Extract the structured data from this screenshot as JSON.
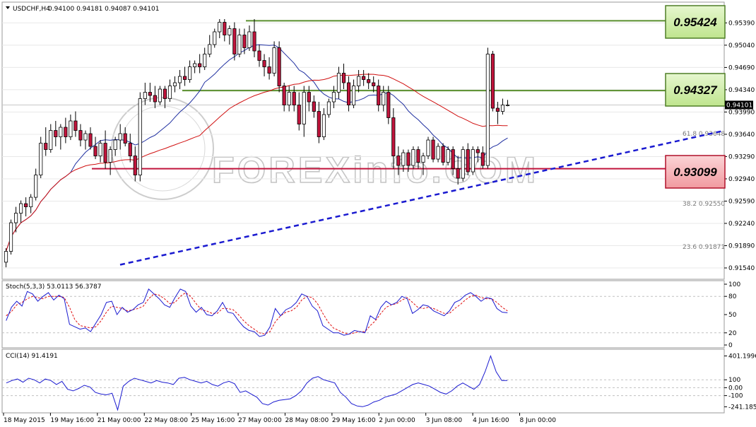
{
  "header": {
    "symbol": "USDCHF,H4",
    "ohlc": "0.94100 0.94181 0.94087 0.94101"
  },
  "watermark": "FOREXinfo.COM",
  "colors": {
    "bull": "#ffffff",
    "bear": "#c0143c",
    "ma_fast": "#1f2fa0",
    "ma_slow": "#d01010",
    "resistance": "#5a8f2e",
    "support": "#c0143c",
    "trend": "#1a1ad0",
    "stoch_main": "#1a1ad0",
    "stoch_signal": "#e01010",
    "cci": "#1a1ad0"
  },
  "chart_data": [
    {
      "type": "candlestick",
      "panel": "price",
      "title": "USDCHF,H4",
      "ylim": [
        0.9144,
        0.9555
      ],
      "y_ticks": [
        "0.95390",
        "0.95040",
        "0.94690",
        "0.94340",
        "0.93990",
        "0.93640",
        "0.93290",
        "0.92940",
        "0.92590",
        "0.92240",
        "0.91890",
        "0.91540"
      ],
      "x_labels": [
        "18 May 2015",
        "19 May 16:00",
        "21 May 00:00",
        "22 May 08:00",
        "25 May 16:00",
        "27 May 00:00",
        "28 May 08:00",
        "29 May 16:00",
        "2 Jun 00:00",
        "3 Jun 08:00",
        "4 Jun 16:00",
        "8 Jun 00:00"
      ],
      "current_price_label": "0.94101",
      "levels": [
        {
          "name": "resistance-high",
          "value": 0.95424,
          "label": "0.95424",
          "color": "#5a8f2e"
        },
        {
          "name": "resistance-mid",
          "value": 0.94327,
          "label": "0.94327",
          "color": "#5a8f2e"
        },
        {
          "name": "support",
          "value": 0.93099,
          "label": "0.93099",
          "color": "#c0143c"
        }
      ],
      "fib_levels": [
        {
          "label": "61.8",
          "value": 0.93648
        },
        {
          "label": "38.2",
          "value": 0.9255
        },
        {
          "label": "23.6",
          "value": 0.91871
        }
      ],
      "trendline": {
        "from": 0.9159,
        "to": 0.9369
      },
      "candles": [
        [
          0.9163,
          0.9185,
          0.9155,
          0.918
        ],
        [
          0.918,
          0.923,
          0.9175,
          0.9225
        ],
        [
          0.9225,
          0.925,
          0.921,
          0.924
        ],
        [
          0.924,
          0.926,
          0.9225,
          0.9255
        ],
        [
          0.9255,
          0.9265,
          0.9235,
          0.925
        ],
        [
          0.925,
          0.927,
          0.924,
          0.9265
        ],
        [
          0.9265,
          0.931,
          0.926,
          0.93
        ],
        [
          0.93,
          0.936,
          0.9295,
          0.935
        ],
        [
          0.935,
          0.9375,
          0.933,
          0.934
        ],
        [
          0.934,
          0.938,
          0.9335,
          0.937
        ],
        [
          0.937,
          0.9385,
          0.9345,
          0.936
        ],
        [
          0.936,
          0.938,
          0.934,
          0.9375
        ],
        [
          0.9375,
          0.939,
          0.935,
          0.936
        ],
        [
          0.936,
          0.9395,
          0.9355,
          0.9385
        ],
        [
          0.9385,
          0.94,
          0.936,
          0.937
        ],
        [
          0.937,
          0.938,
          0.9345,
          0.9355
        ],
        [
          0.9355,
          0.937,
          0.934,
          0.9365
        ],
        [
          0.9365,
          0.9375,
          0.934,
          0.9345
        ],
        [
          0.9345,
          0.936,
          0.9325,
          0.933
        ],
        [
          0.933,
          0.9355,
          0.932,
          0.935
        ],
        [
          0.935,
          0.937,
          0.931,
          0.932
        ],
        [
          0.932,
          0.9345,
          0.93,
          0.934
        ],
        [
          0.934,
          0.936,
          0.933,
          0.9355
        ],
        [
          0.9355,
          0.938,
          0.934,
          0.9365
        ],
        [
          0.9365,
          0.9375,
          0.9345,
          0.935
        ],
        [
          0.935,
          0.9365,
          0.932,
          0.933
        ],
        [
          0.933,
          0.9345,
          0.929,
          0.93
        ],
        [
          0.93,
          0.943,
          0.929,
          0.942
        ],
        [
          0.942,
          0.9445,
          0.941,
          0.943
        ],
        [
          0.943,
          0.9445,
          0.9415,
          0.9425
        ],
        [
          0.9425,
          0.944,
          0.9405,
          0.9415
        ],
        [
          0.9415,
          0.944,
          0.941,
          0.9435
        ],
        [
          0.9435,
          0.944,
          0.9405,
          0.942
        ],
        [
          0.942,
          0.945,
          0.9415,
          0.944
        ],
        [
          0.944,
          0.9455,
          0.943,
          0.9445
        ],
        [
          0.9445,
          0.9465,
          0.9435,
          0.9455
        ],
        [
          0.9455,
          0.947,
          0.944,
          0.945
        ],
        [
          0.945,
          0.948,
          0.9445,
          0.947
        ],
        [
          0.947,
          0.948,
          0.946,
          0.9475
        ],
        [
          0.9475,
          0.949,
          0.946,
          0.947
        ],
        [
          0.947,
          0.95,
          0.9465,
          0.949
        ],
        [
          0.949,
          0.952,
          0.9485,
          0.9505
        ],
        [
          0.9505,
          0.953,
          0.95,
          0.9525
        ],
        [
          0.9525,
          0.9545,
          0.9515,
          0.954
        ],
        [
          0.954,
          0.9545,
          0.951,
          0.952
        ],
        [
          0.952,
          0.9535,
          0.9505,
          0.953
        ],
        [
          0.953,
          0.954,
          0.948,
          0.949
        ],
        [
          0.949,
          0.953,
          0.9485,
          0.952
        ],
        [
          0.952,
          0.953,
          0.949,
          0.95
        ],
        [
          0.95,
          0.9535,
          0.9495,
          0.9525
        ],
        [
          0.9525,
          0.9545,
          0.9485,
          0.9495
        ],
        [
          0.9495,
          0.9505,
          0.947,
          0.948
        ],
        [
          0.948,
          0.949,
          0.9455,
          0.947
        ],
        [
          0.947,
          0.9485,
          0.945,
          0.946
        ],
        [
          0.946,
          0.951,
          0.9455,
          0.95
        ],
        [
          0.95,
          0.951,
          0.943,
          0.944
        ],
        [
          0.944,
          0.9445,
          0.94,
          0.941
        ],
        [
          0.941,
          0.944,
          0.94,
          0.943
        ],
        [
          0.943,
          0.944,
          0.94,
          0.941
        ],
        [
          0.941,
          0.943,
          0.937,
          0.938
        ],
        [
          0.938,
          0.944,
          0.936,
          0.943
        ],
        [
          0.943,
          0.944,
          0.94,
          0.9415
        ],
        [
          0.9415,
          0.9425,
          0.939,
          0.94
        ],
        [
          0.94,
          0.9415,
          0.935,
          0.936
        ],
        [
          0.936,
          0.9405,
          0.9355,
          0.9395
        ],
        [
          0.9395,
          0.942,
          0.939,
          0.9415
        ],
        [
          0.9415,
          0.944,
          0.9405,
          0.943
        ],
        [
          0.943,
          0.947,
          0.942,
          0.946
        ],
        [
          0.946,
          0.9475,
          0.9435,
          0.9445
        ],
        [
          0.9445,
          0.9455,
          0.94,
          0.941
        ],
        [
          0.941,
          0.945,
          0.9405,
          0.944
        ],
        [
          0.944,
          0.9465,
          0.943,
          0.9455
        ],
        [
          0.9455,
          0.9465,
          0.944,
          0.945
        ],
        [
          0.945,
          0.946,
          0.9435,
          0.9445
        ],
        [
          0.9445,
          0.9455,
          0.943,
          0.944
        ],
        [
          0.944,
          0.945,
          0.94,
          0.941
        ],
        [
          0.941,
          0.944,
          0.94,
          0.943
        ],
        [
          0.943,
          0.944,
          0.938,
          0.939
        ],
        [
          0.939,
          0.9405,
          0.931,
          0.933
        ],
        [
          0.933,
          0.9345,
          0.93,
          0.9315
        ],
        [
          0.9315,
          0.934,
          0.9305,
          0.9335
        ],
        [
          0.9335,
          0.934,
          0.9305,
          0.9315
        ],
        [
          0.9315,
          0.9345,
          0.931,
          0.934
        ],
        [
          0.934,
          0.9345,
          0.931,
          0.932
        ],
        [
          0.932,
          0.9335,
          0.93,
          0.933
        ],
        [
          0.933,
          0.936,
          0.9325,
          0.9355
        ],
        [
          0.9355,
          0.936,
          0.932,
          0.9325
        ],
        [
          0.9325,
          0.935,
          0.932,
          0.9345
        ],
        [
          0.9345,
          0.935,
          0.9315,
          0.932
        ],
        [
          0.932,
          0.9345,
          0.9315,
          0.934
        ],
        [
          0.934,
          0.9345,
          0.93,
          0.931
        ],
        [
          0.931,
          0.933,
          0.9285,
          0.9295
        ],
        [
          0.9295,
          0.9345,
          0.929,
          0.934
        ],
        [
          0.934,
          0.935,
          0.93,
          0.9305
        ],
        [
          0.9305,
          0.9345,
          0.93,
          0.934
        ],
        [
          0.934,
          0.9345,
          0.932,
          0.9335
        ],
        [
          0.9335,
          0.9345,
          0.931,
          0.9315
        ],
        [
          0.9315,
          0.95,
          0.931,
          0.949
        ],
        [
          0.949,
          0.9495,
          0.94,
          0.9405
        ],
        [
          0.9405,
          0.9415,
          0.938,
          0.94
        ],
        [
          0.94,
          0.942,
          0.9395,
          0.941
        ],
        [
          0.941,
          0.9418,
          0.9408,
          0.941
        ]
      ]
    },
    {
      "type": "line",
      "panel": "stochastic",
      "title": "Stoch(5,3,3) 53.0113 56.3787",
      "ylim": [
        0,
        100
      ],
      "y_ticks": [
        "100",
        "80",
        "50",
        "20",
        "0"
      ],
      "series": [
        {
          "name": "main",
          "values": [
            40,
            62,
            72,
            64,
            88,
            84,
            72,
            80,
            86,
            74,
            82,
            76,
            34,
            30,
            26,
            28,
            22,
            36,
            50,
            70,
            72,
            50,
            62,
            54,
            58,
            66,
            70,
            92,
            84,
            76,
            66,
            62,
            78,
            92,
            88,
            64,
            54,
            62,
            50,
            48,
            56,
            70,
            54,
            52,
            40,
            30,
            24,
            22,
            14,
            16,
            30,
            60,
            48,
            58,
            62,
            70,
            84,
            80,
            64,
            56,
            32,
            26,
            20,
            20,
            16,
            18,
            24,
            22,
            20,
            48,
            42,
            62,
            72,
            66,
            70,
            80,
            76,
            52,
            58,
            66,
            64,
            56,
            52,
            48,
            56,
            70,
            74,
            82,
            86,
            80,
            72,
            78,
            76,
            60,
            54,
            53
          ]
        },
        {
          "name": "signal",
          "values": [
            48,
            55,
            66,
            70,
            76,
            80,
            78,
            76,
            80,
            80,
            80,
            78,
            62,
            42,
            32,
            30,
            28,
            30,
            40,
            54,
            64,
            62,
            60,
            56,
            58,
            60,
            64,
            76,
            84,
            82,
            76,
            68,
            70,
            80,
            86,
            80,
            68,
            58,
            56,
            52,
            52,
            60,
            60,
            58,
            50,
            40,
            32,
            26,
            20,
            18,
            22,
            38,
            48,
            54,
            56,
            62,
            74,
            80,
            78,
            68,
            52,
            38,
            28,
            24,
            20,
            18,
            20,
            22,
            22,
            32,
            40,
            52,
            62,
            66,
            68,
            74,
            78,
            70,
            62,
            60,
            62,
            60,
            56,
            52,
            52,
            60,
            66,
            74,
            80,
            82,
            78,
            76,
            76,
            70,
            62,
            56
          ]
        }
      ]
    },
    {
      "type": "line",
      "panel": "cci",
      "title": "CCI(14) 91.4191",
      "ylim": [
        -300,
        450
      ],
      "y_ticks": [
        "401.1996",
        "100",
        "0.00",
        "-100",
        "-241.1854"
      ],
      "series": [
        {
          "name": "cci",
          "values": [
            60,
            90,
            110,
            70,
            120,
            100,
            60,
            110,
            90,
            40,
            80,
            -20,
            -40,
            -10,
            30,
            10,
            -60,
            -80,
            -90,
            -70,
            -280,
            20,
            80,
            120,
            100,
            80,
            60,
            90,
            70,
            60,
            40,
            120,
            130,
            100,
            80,
            60,
            80,
            40,
            20,
            60,
            80,
            50,
            -60,
            -40,
            -80,
            -120,
            -200,
            -220,
            -180,
            -160,
            -150,
            -140,
            -100,
            -40,
            60,
            120,
            140,
            100,
            80,
            60,
            -60,
            -120,
            -200,
            -230,
            -240,
            -220,
            -180,
            -160,
            -120,
            -100,
            -80,
            -40,
            0,
            40,
            60,
            40,
            20,
            -20,
            -60,
            -80,
            -40,
            20,
            60,
            20,
            -20,
            40,
            200,
            401,
            200,
            90,
            91
          ]
        }
      ]
    }
  ]
}
